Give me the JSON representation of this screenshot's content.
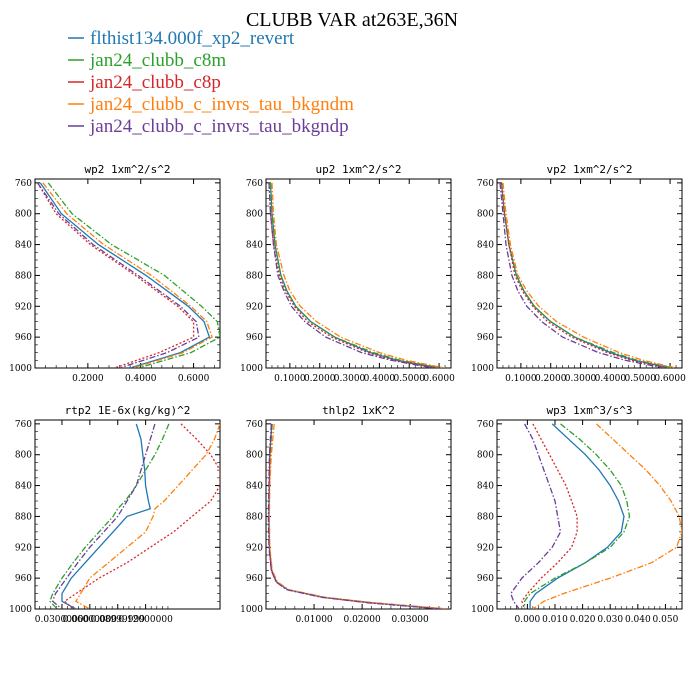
{
  "figure": {
    "title": "CLUBB VAR at263E,36N"
  },
  "colors": {
    "flthist134.000f_xp2_revert": "#1f77b4",
    "jan24_clubb_c8m": "#2ca02c",
    "jan24_clubb_c8p": "#d62728",
    "jan24_clubb_c_invrs_tau_bkgndm": "#ff7f0e",
    "jan24_clubb_c_invrs_tau_bkgndp": "#6a3d9a"
  },
  "legend": [
    {
      "label": "flthist134.000f_xp2_revert",
      "color": "#1f77b4"
    },
    {
      "label": "jan24_clubb_c8m",
      "color": "#2ca02c"
    },
    {
      "label": "jan24_clubb_c8p",
      "color": "#d62728"
    },
    {
      "label": "jan24_clubb_c_invrs_tau_bkgndm",
      "color": "#ff7f0e"
    },
    {
      "label": "jan24_clubb_c_invrs_tau_bkgndp",
      "color": "#6a3d9a"
    }
  ],
  "chart_data": [
    {
      "type": "line",
      "title": "wp2  1xm^2/s^2",
      "xlim": [
        0.0,
        0.7
      ],
      "ylim": [
        1000,
        755
      ],
      "y_ticks": [
        "760",
        "800",
        "840",
        "880",
        "920",
        "960",
        "1000"
      ],
      "x_ticks": [
        {
          "v": 0.2,
          "label": "0.2000"
        },
        {
          "v": 0.4,
          "label": "0.4000"
        },
        {
          "v": 0.6,
          "label": "0.6000"
        }
      ],
      "y": [
        760,
        800,
        840,
        880,
        920,
        940,
        960,
        980,
        1000
      ],
      "series": [
        {
          "name": "flthist134.000f_xp2_revert",
          "values": [
            0.02,
            0.1,
            0.24,
            0.42,
            0.58,
            0.64,
            0.66,
            0.55,
            0.36
          ]
        },
        {
          "name": "jan24_clubb_c8m",
          "values": [
            0.05,
            0.14,
            0.29,
            0.49,
            0.63,
            0.69,
            0.7,
            0.59,
            0.39
          ]
        },
        {
          "name": "jan24_clubb_c8p",
          "values": [
            0.01,
            0.08,
            0.21,
            0.38,
            0.54,
            0.6,
            0.6,
            0.47,
            0.3
          ]
        },
        {
          "name": "jan24_clubb_c_invrs_tau_bkgndm",
          "values": [
            0.03,
            0.12,
            0.26,
            0.44,
            0.59,
            0.65,
            0.67,
            0.56,
            0.37
          ]
        },
        {
          "name": "jan24_clubb_c_invrs_tau_bkgndp",
          "values": [
            0.01,
            0.09,
            0.22,
            0.39,
            0.55,
            0.61,
            0.62,
            0.5,
            0.32
          ]
        }
      ]
    },
    {
      "type": "line",
      "title": "up2  1xm^2/s^2",
      "xlim": [
        0.02,
        0.64
      ],
      "ylim": [
        1000,
        755
      ],
      "y_ticks": [
        "760",
        "800",
        "840",
        "880",
        "920",
        "960",
        "1000"
      ],
      "x_ticks": [
        {
          "v": 0.1,
          "label": "0.1000"
        },
        {
          "v": 0.2,
          "label": "0.2000"
        },
        {
          "v": 0.3,
          "label": "0.3000"
        },
        {
          "v": 0.4,
          "label": "0.4000"
        },
        {
          "v": 0.5,
          "label": "0.5000"
        },
        {
          "v": 0.6,
          "label": "0.6000"
        }
      ],
      "y": [
        760,
        800,
        840,
        880,
        900,
        920,
        940,
        960,
        980,
        990,
        1000
      ],
      "series": [
        {
          "name": "flthist134.000f_xp2_revert",
          "values": [
            0.035,
            0.04,
            0.05,
            0.07,
            0.09,
            0.12,
            0.17,
            0.25,
            0.37,
            0.46,
            0.6
          ]
        },
        {
          "name": "jan24_clubb_c8m",
          "values": [
            0.035,
            0.04,
            0.05,
            0.07,
            0.09,
            0.12,
            0.17,
            0.25,
            0.38,
            0.47,
            0.61
          ]
        },
        {
          "name": "jan24_clubb_c8p",
          "values": [
            0.03,
            0.035,
            0.045,
            0.065,
            0.085,
            0.115,
            0.16,
            0.24,
            0.36,
            0.45,
            0.59
          ]
        },
        {
          "name": "jan24_clubb_c_invrs_tau_bkgndm",
          "values": [
            0.04,
            0.045,
            0.055,
            0.08,
            0.1,
            0.135,
            0.19,
            0.27,
            0.4,
            0.49,
            0.62
          ]
        },
        {
          "name": "jan24_clubb_c_invrs_tau_bkgndp",
          "values": [
            0.03,
            0.035,
            0.045,
            0.06,
            0.08,
            0.105,
            0.15,
            0.22,
            0.34,
            0.44,
            0.58
          ]
        }
      ]
    },
    {
      "type": "line",
      "title": "vp2  1xm^2/s^2",
      "xlim": [
        0.02,
        0.64
      ],
      "ylim": [
        1000,
        755
      ],
      "y_ticks": [
        "760",
        "800",
        "840",
        "880",
        "920",
        "960",
        "1000"
      ],
      "x_ticks": [
        {
          "v": 0.1,
          "label": "0.1000"
        },
        {
          "v": 0.2,
          "label": "0.2000"
        },
        {
          "v": 0.3,
          "label": "0.3000"
        },
        {
          "v": 0.4,
          "label": "0.4000"
        },
        {
          "v": 0.5,
          "label": "0.5000"
        },
        {
          "v": 0.6,
          "label": "0.6000"
        }
      ],
      "y": [
        760,
        800,
        840,
        880,
        900,
        920,
        940,
        960,
        980,
        990,
        1000
      ],
      "series": [
        {
          "name": "flthist134.000f_xp2_revert",
          "values": [
            0.035,
            0.045,
            0.06,
            0.085,
            0.11,
            0.145,
            0.2,
            0.28,
            0.4,
            0.48,
            0.6
          ]
        },
        {
          "name": "jan24_clubb_c8m",
          "values": [
            0.035,
            0.045,
            0.06,
            0.085,
            0.11,
            0.145,
            0.2,
            0.28,
            0.41,
            0.49,
            0.61
          ]
        },
        {
          "name": "jan24_clubb_c8p",
          "values": [
            0.035,
            0.045,
            0.06,
            0.08,
            0.105,
            0.14,
            0.19,
            0.27,
            0.39,
            0.47,
            0.59
          ]
        },
        {
          "name": "jan24_clubb_c_invrs_tau_bkgndm",
          "values": [
            0.04,
            0.05,
            0.065,
            0.09,
            0.12,
            0.16,
            0.22,
            0.31,
            0.43,
            0.51,
            0.62
          ]
        },
        {
          "name": "jan24_clubb_c_invrs_tau_bkgndp",
          "values": [
            0.03,
            0.04,
            0.05,
            0.07,
            0.09,
            0.12,
            0.17,
            0.24,
            0.36,
            0.45,
            0.58
          ]
        }
      ]
    },
    {
      "type": "line",
      "title": "rtp2  1E-6x(kg/kg)^2",
      "xlim": [
        0.001,
        0.2
      ],
      "ylim": [
        1000,
        755
      ],
      "y_ticks": [
        "760",
        "800",
        "840",
        "880",
        "920",
        "960",
        "1000"
      ],
      "x_ticks": [
        {
          "v": 0.03,
          "label": "0.03000000"
        },
        {
          "v": 0.06,
          "label": "0.06000000"
        },
        {
          "v": 0.09,
          "label": "0.08999999"
        },
        {
          "v": 0.12,
          "label": "0.12000000"
        }
      ],
      "y": [
        760,
        780,
        800,
        820,
        840,
        860,
        870,
        880,
        900,
        920,
        940,
        960,
        980,
        990,
        1000
      ],
      "series": [
        {
          "name": "flthist134.000f_xp2_revert",
          "values": [
            0.11,
            0.115,
            0.117,
            0.119,
            0.12,
            0.123,
            0.125,
            0.1,
            0.085,
            0.07,
            0.055,
            0.04,
            0.03,
            0.03,
            0.045
          ]
        },
        {
          "name": "jan24_clubb_c8m",
          "values": [
            0.145,
            0.138,
            0.13,
            0.12,
            0.11,
            0.098,
            0.09,
            0.085,
            0.07,
            0.055,
            0.042,
            0.03,
            0.02,
            0.017,
            0.025
          ]
        },
        {
          "name": "jan24_clubb_c8p",
          "values": [
            0.158,
            0.175,
            0.19,
            0.2,
            0.2,
            0.19,
            0.18,
            0.17,
            0.15,
            0.125,
            0.1,
            0.07,
            0.045,
            0.033,
            0.042
          ]
        },
        {
          "name": "jan24_clubb_c_invrs_tau_bkgndm",
          "values": [
            0.2,
            0.194,
            0.185,
            0.17,
            0.155,
            0.14,
            0.13,
            0.128,
            0.12,
            0.1,
            0.08,
            0.06,
            0.05,
            0.045,
            0.06
          ]
        },
        {
          "name": "jan24_clubb_c_invrs_tau_bkgndp",
          "values": [
            0.13,
            0.125,
            0.12,
            0.115,
            0.11,
            0.1,
            0.095,
            0.09,
            0.075,
            0.06,
            0.047,
            0.035,
            0.023,
            0.02,
            0.03
          ]
        }
      ]
    },
    {
      "type": "line",
      "title": "thlp2  1xK^2",
      "xlim": [
        0.0,
        0.0385
      ],
      "ylim": [
        1000,
        755
      ],
      "y_ticks": [
        "760",
        "800",
        "840",
        "880",
        "920",
        "960",
        "1000"
      ],
      "x_ticks": [
        {
          "v": 0.01,
          "label": "0.01000"
        },
        {
          "v": 0.02,
          "label": "0.02000"
        },
        {
          "v": 0.03,
          "label": "0.03000"
        }
      ],
      "y": [
        760,
        800,
        840,
        880,
        920,
        950,
        965,
        975,
        985,
        992,
        1000
      ],
      "series": [
        {
          "name": "flthist134.000f_xp2_revert",
          "values": [
            0.0012,
            0.0008,
            0.0007,
            0.0006,
            0.0007,
            0.0012,
            0.0022,
            0.0045,
            0.012,
            0.022,
            0.037
          ]
        },
        {
          "name": "jan24_clubb_c8m",
          "values": [
            0.0013,
            0.0009,
            0.0007,
            0.0006,
            0.0007,
            0.0012,
            0.0023,
            0.0046,
            0.012,
            0.022,
            0.0375
          ]
        },
        {
          "name": "jan24_clubb_c8p",
          "values": [
            0.0012,
            0.0008,
            0.0007,
            0.0006,
            0.0007,
            0.0011,
            0.0021,
            0.0044,
            0.0118,
            0.0215,
            0.0368
          ]
        },
        {
          "name": "jan24_clubb_c_invrs_tau_bkgndm",
          "values": [
            0.0017,
            0.0011,
            0.0008,
            0.0007,
            0.0008,
            0.0013,
            0.0024,
            0.0048,
            0.0125,
            0.0225,
            0.038
          ]
        },
        {
          "name": "jan24_clubb_c_invrs_tau_bkgndp",
          "values": [
            0.0011,
            0.0007,
            0.0006,
            0.0005,
            0.0006,
            0.0011,
            0.0021,
            0.0043,
            0.0117,
            0.0213,
            0.0365
          ]
        }
      ]
    },
    {
      "type": "line",
      "title": "wp3  1xm^3/s^3",
      "xlim": [
        -0.011,
        0.056
      ],
      "ylim": [
        1000,
        755
      ],
      "y_ticks": [
        "760",
        "800",
        "840",
        "880",
        "920",
        "960",
        "1000"
      ],
      "x_ticks": [
        {
          "v": 0.0,
          "label": "0.000"
        },
        {
          "v": 0.01,
          "label": "0.010"
        },
        {
          "v": 0.02,
          "label": "0.020"
        },
        {
          "v": 0.03,
          "label": "0.030"
        },
        {
          "v": 0.04,
          "label": "0.040"
        },
        {
          "v": 0.05,
          "label": "0.050"
        }
      ],
      "y": [
        760,
        780,
        800,
        820,
        840,
        860,
        880,
        900,
        920,
        940,
        960,
        980,
        990,
        1000
      ],
      "series": [
        {
          "name": "flthist134.000f_xp2_revert",
          "values": [
            0.009,
            0.015,
            0.021,
            0.026,
            0.03,
            0.033,
            0.035,
            0.034,
            0.029,
            0.021,
            0.011,
            0.003,
            0.001,
            0.001
          ]
        },
        {
          "name": "jan24_clubb_c8m",
          "values": [
            0.012,
            0.019,
            0.025,
            0.03,
            0.034,
            0.036,
            0.037,
            0.035,
            0.03,
            0.021,
            0.01,
            0.001,
            -0.001,
            -0.001
          ]
        },
        {
          "name": "jan24_clubb_c8p",
          "values": [
            0.002,
            0.005,
            0.008,
            0.011,
            0.014,
            0.016,
            0.018,
            0.018,
            0.016,
            0.011,
            0.005,
            0.0,
            -0.002,
            -0.001
          ]
        },
        {
          "name": "jan24_clubb_c_invrs_tau_bkgndm",
          "values": [
            0.025,
            0.031,
            0.037,
            0.043,
            0.048,
            0.052,
            0.055,
            0.056,
            0.054,
            0.045,
            0.03,
            0.013,
            0.006,
            0.002
          ]
        },
        {
          "name": "jan24_clubb_c_invrs_tau_bkgndp",
          "values": [
            -0.001,
            0.002,
            0.004,
            0.006,
            0.008,
            0.01,
            0.011,
            0.012,
            0.009,
            0.004,
            -0.002,
            -0.006,
            -0.005,
            -0.003
          ]
        }
      ]
    }
  ]
}
